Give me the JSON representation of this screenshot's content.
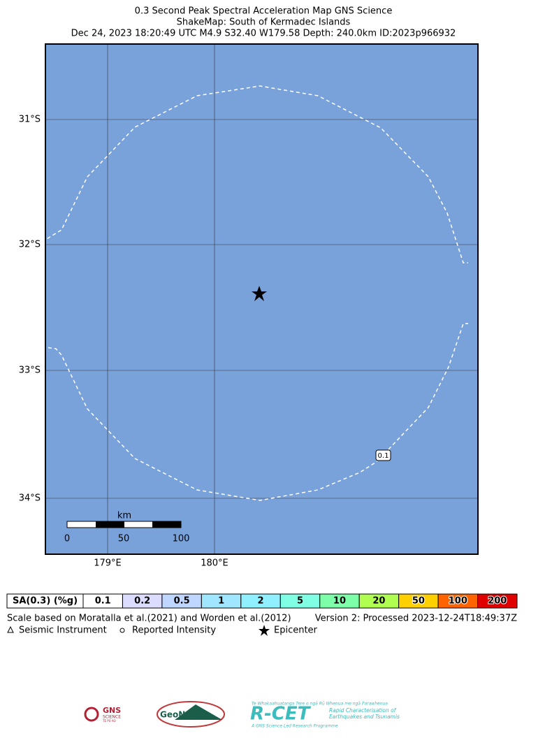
{
  "header": {
    "lines": [
      "0.3 Second Peak Spectral Acceleration Map GNS Science",
      "ShakeMap: South of Kermadec Islands",
      "Dec 24, 2023 18:20:49 UTC M4.9 S32.40 W179.58 Depth: 240.0km ID:2023p966932"
    ]
  },
  "map": {
    "lat_labels": [
      "31°S",
      "32°S",
      "33°S",
      "34°S"
    ],
    "lon_labels": [
      "179°E",
      "180°E"
    ],
    "contour_label": "0.1",
    "scale_bar": {
      "unit": "km",
      "labels": [
        "0",
        "50",
        "100"
      ]
    }
  },
  "legend": {
    "title": "SA(0.3) (%g)",
    "bins": [
      {
        "label": "0.1",
        "color": "#ffffff"
      },
      {
        "label": "0.2",
        "color": "#dcdcff"
      },
      {
        "label": "0.5",
        "color": "#bfd6ff"
      },
      {
        "label": "1",
        "color": "#a0e6ff"
      },
      {
        "label": "2",
        "color": "#90f0ff"
      },
      {
        "label": "5",
        "color": "#80ffe4"
      },
      {
        "label": "10",
        "color": "#7cffa8"
      },
      {
        "label": "20",
        "color": "#b0ff50"
      },
      {
        "label": "50",
        "color": "#ffd000"
      },
      {
        "label": "100",
        "color": "#ff6400"
      },
      {
        "label": "200",
        "color": "#e00000"
      }
    ],
    "note": "Scale based on Moratalla et al.(2021) and Worden et al.(2012)",
    "version": "Version 2: Processed 2023-12-24T18:49:37Z",
    "symbols": [
      "Seismic Instrument",
      "Reported Intensity",
      "Epicenter"
    ]
  },
  "logos": {
    "gns": [
      "GNS",
      "SCIENCE",
      "TE PŪ AO"
    ],
    "geonet": "GeoNet",
    "rcet": {
      "name": "R-CET",
      "maori": "Te Whakaahuatanga Tere o ngā Rū Whenua me ngā Parawhenua",
      "lines": [
        "Rapid Characterisation of",
        "Earthquakes and Tsunamis"
      ],
      "footer": "A GNS Science Led Research Programme"
    }
  }
}
